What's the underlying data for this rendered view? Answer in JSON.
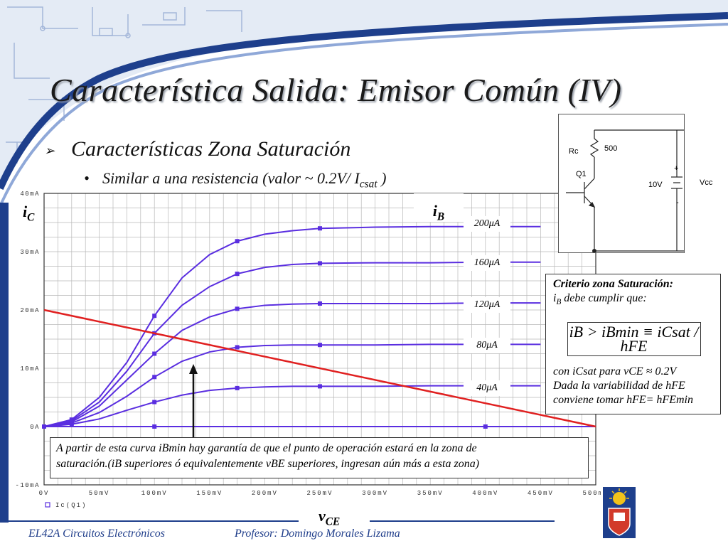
{
  "slide": {
    "title": "Característica Salida: Emisor Común (IV)",
    "bullet1": "Características Zona Saturación",
    "bullet2_prefix": "Similar a una resistencia (valor ~ 0.2V/ I",
    "bullet2_sub": "csat",
    "bullet2_suffix": " )"
  },
  "labels": {
    "ic_main": "i",
    "ic_sub": "C",
    "ib_main": "i",
    "ib_sub": "B",
    "vce_main": "v",
    "vce_sub": "CE",
    "legend_trace": "Ic(Q1)",
    "curve_labels": [
      "200μA",
      "160μA",
      "120μA",
      "80μA",
      "40μA"
    ]
  },
  "circuit": {
    "rc_label": "Rc",
    "rc_value": "500",
    "transistor": "Q1",
    "source_value": "10V",
    "source_name": "Vcc",
    "plus": "+",
    "minus": "-"
  },
  "criterio": {
    "heading": "Criterio zona Saturación:",
    "line1_a": "i",
    "line1_sub": "B",
    "line1_b": " debe cumplir que:",
    "formula": "iB > iBmin ≡ iCsat / hFE",
    "line2": "con iCsat para vCE ≈ 0.2V",
    "line3": "Dada la variabilidad de hFE",
    "line4": "conviene tomar hFE= hFEmin"
  },
  "note": {
    "text1": "A partir de esta curva iBmin hay garantía de que el punto de operación estará en la zona de",
    "text2": "saturación.(iB superiores ó equivalentemente vBE superiores, ingresan aún más a esta zona)"
  },
  "footer": {
    "course": "EL42A Circuitos Electrónicos",
    "professor": "Profesor: Domingo Morales Lizama"
  },
  "colors": {
    "curve": "#5a2ee0",
    "loadline": "#e02020",
    "grid": "#b8b8b8",
    "deco": "#1e3f8c",
    "footer_text": "#1f3d8a"
  },
  "chart_data": {
    "type": "line",
    "title": "",
    "xlabel": "vCE",
    "ylabel": "iC",
    "x_ticks": [
      "0V",
      "50mV",
      "100mV",
      "150mV",
      "200mV",
      "250mV",
      "300mV",
      "350mV",
      "400mV",
      "450mV",
      "500mV"
    ],
    "y_ticks": [
      "-10mA",
      "0A",
      "10mA",
      "20mA",
      "30mA",
      "40mA"
    ],
    "xlim": [
      0,
      500
    ],
    "ylim": [
      -10,
      40
    ],
    "x_unit": "mV",
    "y_unit": "mA",
    "series": [
      {
        "name": "200μA",
        "x": [
          0,
          25,
          50,
          75,
          100,
          125,
          150,
          175,
          200,
          225,
          250,
          300,
          350,
          400,
          450
        ],
        "y": [
          0,
          1.2,
          5,
          11,
          19,
          25.5,
          29.5,
          31.8,
          33,
          33.6,
          34,
          34.2,
          34.3,
          34.3,
          34.3
        ]
      },
      {
        "name": "160μA",
        "x": [
          0,
          25,
          50,
          75,
          100,
          125,
          150,
          175,
          200,
          225,
          250,
          300,
          350,
          400,
          450
        ],
        "y": [
          0,
          1,
          4.2,
          9.5,
          16,
          20.8,
          24,
          26.2,
          27.3,
          27.8,
          28,
          28.1,
          28.1,
          28.2,
          28.2
        ]
      },
      {
        "name": "120μA",
        "x": [
          0,
          25,
          50,
          75,
          100,
          125,
          150,
          175,
          200,
          225,
          250,
          300,
          350,
          400,
          450
        ],
        "y": [
          0,
          0.8,
          3.5,
          8,
          12.5,
          16.5,
          18.8,
          20.2,
          20.8,
          21,
          21.1,
          21.1,
          21.1,
          21.2,
          21.2
        ]
      },
      {
        "name": "80μA",
        "x": [
          0,
          25,
          50,
          75,
          100,
          125,
          150,
          175,
          200,
          225,
          250,
          300,
          350,
          400,
          450
        ],
        "y": [
          0,
          0.6,
          2.4,
          5.2,
          8.5,
          11.2,
          12.8,
          13.6,
          13.9,
          14,
          14,
          14,
          14.1,
          14.1,
          14.1
        ]
      },
      {
        "name": "40μA",
        "x": [
          0,
          25,
          50,
          75,
          100,
          125,
          150,
          175,
          200,
          225,
          250,
          300,
          350,
          400,
          450
        ],
        "y": [
          0,
          0.4,
          1.3,
          2.8,
          4.2,
          5.4,
          6.2,
          6.6,
          6.8,
          6.9,
          6.9,
          6.9,
          7,
          7,
          7
        ]
      },
      {
        "name": "0",
        "x": [
          0,
          100,
          200,
          300,
          400,
          500
        ],
        "y": [
          0,
          0,
          0,
          0,
          0,
          0
        ]
      }
    ],
    "loadline": {
      "x": [
        0,
        500
      ],
      "y": [
        20,
        0
      ]
    },
    "grid": true
  }
}
